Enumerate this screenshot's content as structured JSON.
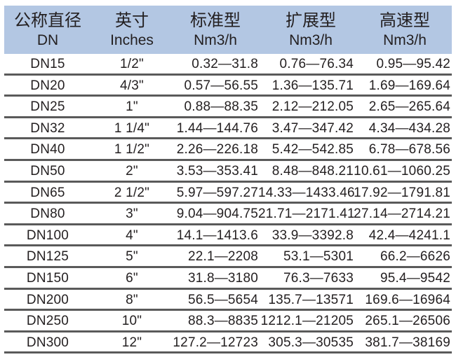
{
  "header": {
    "columns": [
      {
        "zh": "公称直径",
        "en": "DN"
      },
      {
        "zh": "英寸",
        "en": "Inches"
      },
      {
        "zh": "标准型",
        "en": "Nm3/h"
      },
      {
        "zh": "扩展型",
        "en": "Nm3/h"
      },
      {
        "zh": "高速型",
        "en": "Nm3/h"
      }
    ]
  },
  "rows": [
    [
      "DN15",
      "1/2\"",
      "0.32—31.8",
      "0.76—76.34",
      "0.95—95.42"
    ],
    [
      "DN20",
      "4/3\"",
      "0.57—56.55",
      "1.36—135.71",
      "1.69—169.64"
    ],
    [
      "DN25",
      "1\"",
      "0.88—88.35",
      "2.12—212.05",
      "2.65—265.64"
    ],
    [
      "DN32",
      "1 1/4\"",
      "1.44—144.76",
      "3.47—347.42",
      "4.34—434.28"
    ],
    [
      "DN40",
      "1 1/2\"",
      "2.26—226.18",
      "5.42—542.85",
      "6.78—678.56"
    ],
    [
      "DN50",
      "2\"",
      "3.53—353.41",
      "8.48—848.21",
      "10.61—1060.25"
    ],
    [
      "DN65",
      "2 1/2\"",
      "5.97—597.27",
      "14.33—1433.46",
      "17.92—1791.81"
    ],
    [
      "DN80",
      "3\"",
      "9.04—904.75",
      "21.71—2171.41",
      "27.14—2714.21"
    ],
    [
      "DN100",
      "4\"",
      "14.1—1413.6",
      "33.9—3392.8",
      "42.4—4241.1"
    ],
    [
      "DN125",
      "5\"",
      "22.1—2208",
      "53.1—5301",
      "66.2—6626"
    ],
    [
      "DN150",
      "6\"",
      "31.8—3180",
      "76.3—7633",
      "95.4—9542"
    ],
    [
      "DN200",
      "8\"",
      "56.5—5654",
      "135.7—13571",
      "169.6—16964"
    ],
    [
      "DN250",
      "10\"",
      "88.3—8835",
      "1212.1—21205",
      "265.1—26506"
    ],
    [
      "DN300",
      "12\"",
      "127.2—12723",
      "305.3—30535",
      "381.7—38169"
    ]
  ],
  "colors": {
    "header_bg": "#b3c7e3",
    "rule": "#5a5a5a",
    "text": "#231f20"
  }
}
